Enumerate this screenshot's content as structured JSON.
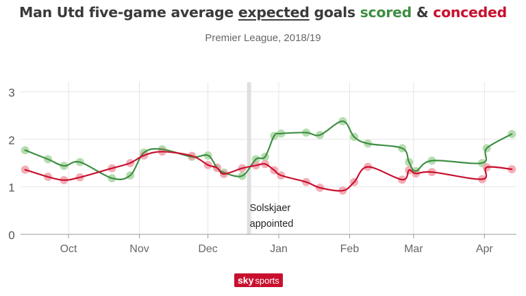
{
  "header": {
    "title_part1": "Man Utd five-game average ",
    "title_underlined": "expected",
    "title_part2": " goals ",
    "title_scored": "scored",
    "title_amp": " & ",
    "title_conceded": "conceded",
    "subtitle": "Premier League, 2018/19"
  },
  "colors": {
    "scored": "#3e8e41",
    "conceded": "#c8102e",
    "scored_marker": "#a9d7a2",
    "conceded_marker": "#f2a0aa",
    "grid": "#e4e4e4",
    "text": "#3a3a3a"
  },
  "logo": {
    "brand": "sky",
    "product": "sports"
  },
  "chart_data": {
    "type": "line",
    "title": "Man Utd five-game average expected goals scored & conceded",
    "subtitle": "Premier League, 2018/19",
    "xlabel": "",
    "ylabel": "",
    "ylim": [
      0,
      3.2
    ],
    "xlim": [
      "2018-09-10",
      "2019-04-15"
    ],
    "yticks": [
      0,
      1,
      2,
      3
    ],
    "xticks": [
      {
        "date": "2018-10-01",
        "label": "Oct"
      },
      {
        "date": "2018-11-01",
        "label": "Nov"
      },
      {
        "date": "2018-12-01",
        "label": "Dec"
      },
      {
        "date": "2019-01-01",
        "label": "Jan"
      },
      {
        "date": "2019-02-01",
        "label": "Feb"
      },
      {
        "date": "2019-03-01",
        "label": "Mar"
      },
      {
        "date": "2019-04-01",
        "label": "Apr"
      }
    ],
    "grid": true,
    "annotation": {
      "date": "2018-12-19",
      "line1": "Solskjaer",
      "line2": "appointed"
    },
    "dates": [
      "2018-09-12",
      "2018-09-22",
      "2018-09-29",
      "2018-10-06",
      "2018-10-20",
      "2018-10-28",
      "2018-11-03",
      "2018-11-11",
      "2018-11-24",
      "2018-12-01",
      "2018-12-05",
      "2018-12-08",
      "2018-12-16",
      "2018-12-22",
      "2018-12-26",
      "2018-12-30",
      "2019-01-02",
      "2019-01-13",
      "2019-01-19",
      "2019-01-29",
      "2019-02-03",
      "2019-02-09",
      "2019-02-24",
      "2019-02-27",
      "2019-03-02",
      "2019-03-09",
      "2019-03-31",
      "2019-04-02",
      "2019-04-13"
    ],
    "series": [
      {
        "name": "scored",
        "values": [
          1.77,
          1.58,
          1.44,
          1.52,
          1.18,
          1.24,
          1.72,
          1.79,
          1.63,
          1.66,
          1.4,
          1.3,
          1.23,
          1.58,
          1.63,
          2.07,
          2.12,
          2.14,
          2.09,
          2.38,
          2.05,
          1.91,
          1.81,
          1.52,
          1.33,
          1.55,
          1.5,
          1.81,
          2.11
        ]
      },
      {
        "name": "conceded",
        "values": [
          1.36,
          1.21,
          1.14,
          1.2,
          1.39,
          1.5,
          1.66,
          1.74,
          1.65,
          1.46,
          1.4,
          1.27,
          1.39,
          1.45,
          1.48,
          1.35,
          1.24,
          1.1,
          0.98,
          0.92,
          1.1,
          1.42,
          1.15,
          1.35,
          1.28,
          1.31,
          1.16,
          1.41,
          1.37
        ]
      }
    ]
  }
}
